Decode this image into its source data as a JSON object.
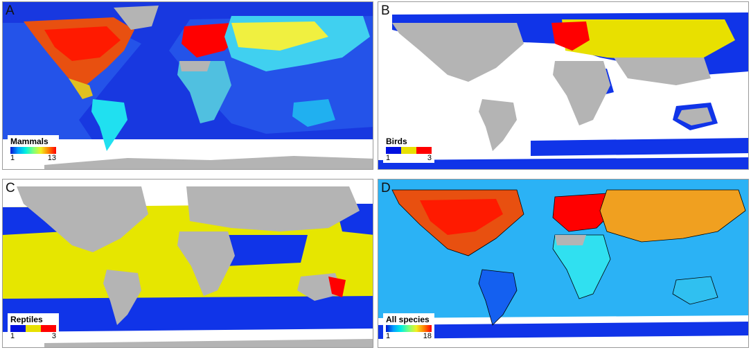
{
  "panels": [
    {
      "letter": "A",
      "legend_title": "Mammals",
      "legend_min": "1",
      "legend_max": "13",
      "scale_colors": [
        "#0014d0",
        "#00a0ff",
        "#00f0e0",
        "#7cff7c",
        "#f0f020",
        "#ff8000",
        "#ff0000"
      ]
    },
    {
      "letter": "B",
      "legend_title": "Birds",
      "legend_min": "1",
      "legend_max": "3",
      "scale_colors": [
        "#0010e0",
        "#e8e000",
        "#ff0000"
      ]
    },
    {
      "letter": "C",
      "legend_title": "Reptiles",
      "legend_min": "1",
      "legend_max": "3",
      "scale_colors": [
        "#0010e0",
        "#e8e000",
        "#ff0000"
      ]
    },
    {
      "letter": "D",
      "legend_title": "All species",
      "legend_min": "1",
      "legend_max": "18",
      "scale_colors": [
        "#0014d0",
        "#00a0ff",
        "#00f0e0",
        "#7cff7c",
        "#f0f020",
        "#ff8000",
        "#ff0000"
      ]
    }
  ],
  "colors": {
    "land": "#b4b4b4",
    "ocean_deep": "#1838e0",
    "ocean_mid": "#3c78f0",
    "cyan": "#20e8f8",
    "yellow": "#e6e600",
    "red": "#ff0000",
    "orange": "#ff7a00"
  }
}
